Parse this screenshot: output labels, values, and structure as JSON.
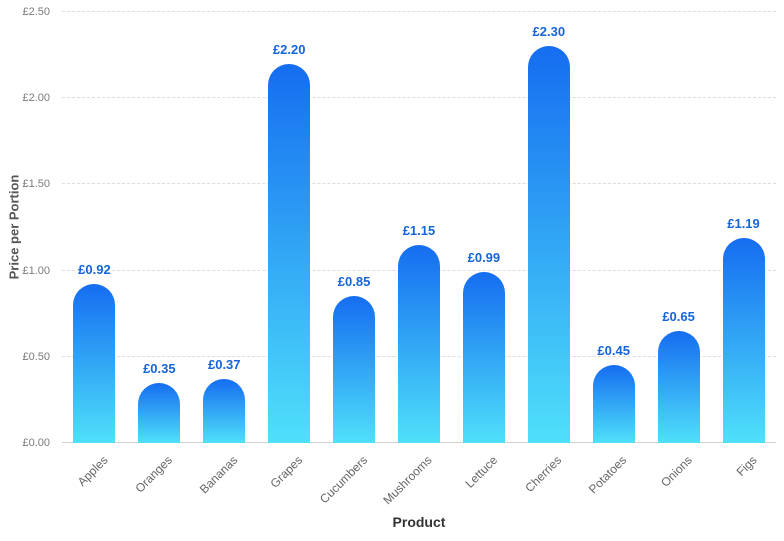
{
  "chart_data": {
    "type": "bar",
    "title": "",
    "categories": [
      "Apples",
      "Oranges",
      "Bananas",
      "Grapes",
      "Cucumbers",
      "Mushrooms",
      "Lettuce",
      "Cherries",
      "Potatoes",
      "Onions",
      "Figs"
    ],
    "values": [
      0.92,
      0.35,
      0.37,
      2.2,
      0.85,
      1.15,
      0.99,
      2.3,
      0.45,
      0.65,
      1.19
    ],
    "value_labels": [
      "£0.92",
      "£0.35",
      "£0.37",
      "£2.20",
      "£0.85",
      "£1.15",
      "£0.99",
      "£2.30",
      "£0.45",
      "£0.65",
      "£1.19"
    ],
    "xlabel": "Product",
    "ylabel": "Price per Portion",
    "ylim": [
      0,
      2.5
    ],
    "yticks": [
      0,
      0.5,
      1.0,
      1.5,
      2.0,
      2.5
    ],
    "ytick_labels": [
      "£0.00",
      "£0.50",
      "£1.00",
      "£1.50",
      "£2.00",
      "£2.50"
    ],
    "grid": true,
    "legend": false,
    "colors": {
      "bar_top": "#156df0",
      "bar_bottom": "#4fe0fa",
      "value_label": "#1565d8",
      "grid": "#dcdcdc",
      "tick_text": "#7a7a7a",
      "axis_title": "#555555"
    }
  }
}
